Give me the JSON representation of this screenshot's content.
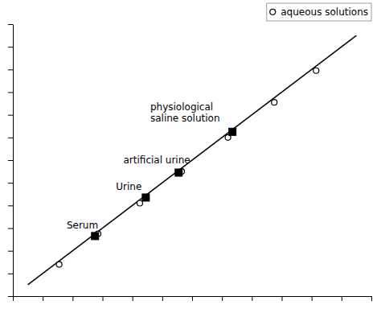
{
  "chart_data": {
    "type": "scatter",
    "xlim": [
      -0.1,
      1.1
    ],
    "ylim": [
      -0.1,
      1.1
    ],
    "xticks": [
      -0.1,
      0,
      0.1,
      0.2,
      0.3,
      0.4,
      0.5,
      0.6,
      0.7,
      0.8,
      0.9,
      1,
      1.1
    ],
    "yticks": [
      -0.1,
      0,
      0.1,
      0.2,
      0.3,
      0.4,
      0.5,
      0.6,
      0.7,
      0.8,
      0.9,
      1,
      1.1
    ],
    "tick_labels": false,
    "legend": "upper right",
    "series": [
      {
        "type": "line",
        "color": "#000000",
        "x": [
          -0.05,
          1.05
        ],
        "values": [
          -0.05,
          1.05
        ]
      },
      {
        "type": "scatter",
        "name": "aqueous solutions",
        "marker": "circle",
        "color": "#000000",
        "x": [
          0.055,
          0.185,
          0.325,
          0.465,
          0.62,
          0.775,
          0.915
        ],
        "values": [
          0.04,
          0.175,
          0.31,
          0.45,
          0.6,
          0.755,
          0.895
        ]
      },
      {
        "type": "scatter",
        "marker": "square",
        "color": "#000000",
        "x": [
          0.175,
          0.345,
          0.455,
          0.635
        ],
        "values": [
          0.165,
          0.335,
          0.445,
          0.625
        ]
      }
    ],
    "annotations": [
      {
        "text": "Serum",
        "x": 0.08,
        "y": 0.2
      },
      {
        "text": "Urine",
        "x": 0.245,
        "y": 0.37
      },
      {
        "text": "artificial urine",
        "x": 0.27,
        "y": 0.485
      },
      {
        "text": "physiological\nsaline solution",
        "x": 0.36,
        "y": 0.67
      }
    ]
  }
}
